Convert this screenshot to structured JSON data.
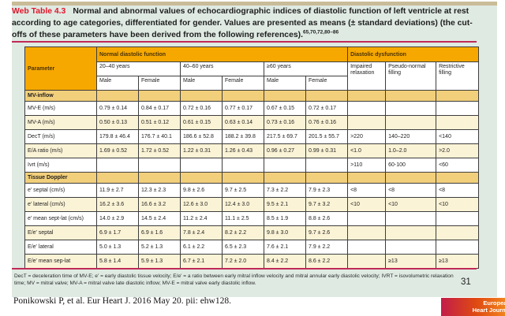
{
  "title": {
    "label": "Web Table 4.3",
    "text": "Normal and abnormal values of echocardiographic indices of diastolic function of left ventricle at rest according to age categories, differentiated for gender. Values are presented as means (± standard deviations) (the cut-offs of these parameters have been derived from the following references).",
    "references_superscript": "65,70,72,80–86"
  },
  "table": {
    "header": {
      "parameter": "Parameter",
      "normal_group": "Normal diastolic function",
      "dysfunction_group": "Diastolic dysfunction",
      "age_groups": [
        "20–40 years",
        "40–60 years",
        "≥60 years"
      ],
      "gender_labels": [
        "Male",
        "Female",
        "Male",
        "Female",
        "Male",
        "Female"
      ],
      "dysfunction_columns": [
        "Impaired relaxation",
        "Pseudo-normal filling",
        "Restrictive filling"
      ]
    },
    "rows": [
      {
        "type": "section",
        "label": "MV-inflow"
      },
      {
        "type": "data",
        "shade": false,
        "label": "MV-E (m/s)",
        "cells": [
          "0.79 ± 0.14",
          "0.84 ± 0.17",
          "0.72 ± 0.16",
          "0.77 ± 0.17",
          "0.67 ± 0.15",
          "0.72 ± 0.17",
          "",
          "",
          ""
        ]
      },
      {
        "type": "data",
        "shade": true,
        "label": "MV-A (m/s)",
        "cells": [
          "0.50 ± 0.13",
          "0.51 ± 0.12",
          "0.61 ± 0.15",
          "0.63 ± 0.14",
          "0.73 ± 0.16",
          "0.76 ± 0.16",
          "",
          "",
          ""
        ]
      },
      {
        "type": "data",
        "shade": false,
        "label": "DecT (m/s)",
        "cells": [
          "179.8 ± 46.4",
          "176.7 ± 40.1",
          "186.6 ± 52.8",
          "188.2 ± 39.8",
          "217.5 ± 69.7",
          "201.5 ± 55.7",
          ">220",
          "140–220",
          "<140"
        ]
      },
      {
        "type": "data",
        "shade": true,
        "label": "E/A ratio (m/s)",
        "cells": [
          "1.69 ± 0.52",
          "1.72 ± 0.52",
          "1.22 ± 0.31",
          "1.26 ± 0.43",
          "0.96 ± 0.27",
          "0.99 ± 0.31",
          "<1.0",
          "1.0–2.0",
          ">2.0"
        ]
      },
      {
        "type": "data",
        "shade": false,
        "label": "Ivrt (m/s)",
        "cells": [
          "",
          "",
          "",
          "",
          "",
          "",
          ">110",
          "60-100",
          "<60"
        ]
      },
      {
        "type": "section",
        "label": "Tissue Doppler"
      },
      {
        "type": "data",
        "shade": false,
        "label": "e' septal (cm/s)",
        "cells": [
          "11.9 ± 2.7",
          "12.3 ± 2.3",
          "9.8 ± 2.6",
          "9.7 ± 2.5",
          "7.3 ± 2.2",
          "7.9 ± 2.3",
          "<8",
          "<8",
          "<8"
        ]
      },
      {
        "type": "data",
        "shade": true,
        "label": "e' lateral (cm/s)",
        "cells": [
          "16.2 ± 3.6",
          "16.6 ± 3.2",
          "12.6 ± 3.0",
          "12.4 ± 3.0",
          "9.5 ± 2.1",
          "9.7 ± 3.2",
          "<10",
          "<10",
          "<10"
        ]
      },
      {
        "type": "data",
        "shade": false,
        "label": "e' mean sept-lat (cm/s)",
        "cells": [
          "14.0 ± 2.9",
          "14.5 ± 2.4",
          "11.2 ± 2.4",
          "11.1 ± 2.5",
          "8.5 ± 1.9",
          "8.8 ± 2.6",
          "",
          "",
          ""
        ]
      },
      {
        "type": "data",
        "shade": true,
        "label": "E/e' septal",
        "cells": [
          "6.9 ± 1.7",
          "6.9 ± 1.6",
          "7.8 ± 2.4",
          "8.2 ± 2.2",
          "9.8 ± 3.0",
          "9.7 ± 2.6",
          "",
          "",
          ""
        ]
      },
      {
        "type": "data",
        "shade": false,
        "label": "E/e' lateral",
        "cells": [
          "5.0 ± 1.3",
          "5.2 ± 1.3",
          "6.1 ± 2.2",
          "6.5 ± 2.3",
          "7.6 ± 2.1",
          "7.9 ± 2.2",
          "",
          "",
          ""
        ]
      },
      {
        "type": "data",
        "shade": true,
        "label": "E/e' mean sep-lat",
        "cells": [
          "5.8 ± 1.4",
          "5.9 ± 1.3",
          "6.7 ± 2.1",
          "7.2 ± 2.0",
          "8.4 ± 2.2",
          "8.6 ± 2.2",
          "",
          "≥13",
          "≥13"
        ]
      }
    ]
  },
  "footnote": "DecT = deceleration time of MV-E; e' = early diastolic tissue velocity; E/e' = a ratio between early mitral inflow velocity and mitral annular early diastolic velocity; IVRT = isovolumetric relaxation time; MV = mitral valve; MV-A = mitral valve late diastolic inflow; MV-E = mitral valve early diastolic inflow.",
  "citation": "Ponikowski P, et al. Eur Heart J. 2016 May 20. pii: ehw128.",
  "page_number": "31",
  "journal_badge": {
    "line1": "European",
    "line2": "Heart Journal"
  },
  "colors": {
    "header_orange": "#f6a800",
    "section_tan": "#f2cf7b",
    "row_cream": "#fbf3d6",
    "panel_background": "#dfeae3",
    "rule_crimson": "#c02a56",
    "title_red": "#e0162b",
    "badge_gradient_start": "#c21d4a",
    "badge_gradient_end": "#f1831d"
  }
}
